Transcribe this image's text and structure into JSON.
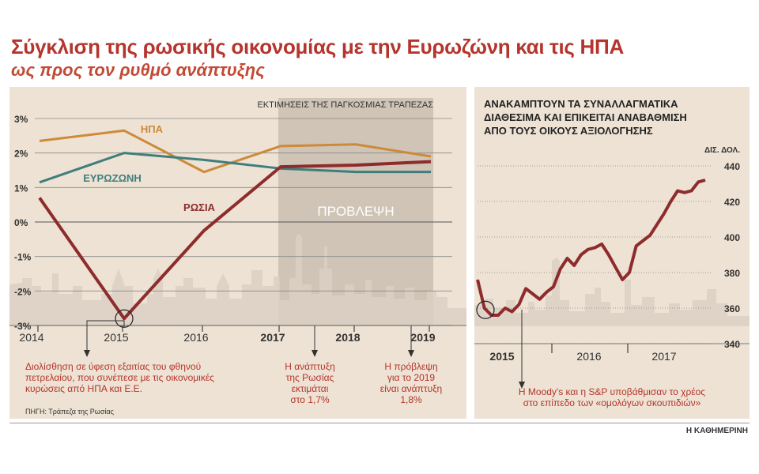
{
  "header": {
    "title": "Σύγκλιση της ρωσικής οικονομίας με την Ευρωζώνη και τις ΗΠΑ",
    "subtitle": "ως προς τον ρυθμό ανάπτυξης"
  },
  "colors": {
    "panel_bg": "#ede2d3",
    "russia": "#8e2c2d",
    "usa": "#cd8a3a",
    "eurozone": "#3f7e7c",
    "accent_red": "#b5352d",
    "forecast_band": "#cfc4b6",
    "skyline": "#dad0c3"
  },
  "chart_data": [
    {
      "type": "line",
      "x_labels": [
        "2014",
        "2015",
        "2016",
        "2017",
        "2018",
        "2019"
      ],
      "x_labels_bold": [
        "2017",
        "2018",
        "2019"
      ],
      "ylim": [
        -3,
        3
      ],
      "y_ticks": [
        "3%",
        "2%",
        "1%",
        "0%",
        "-1%",
        "-2%",
        "-3%"
      ],
      "y_tick_values": [
        3,
        2,
        1,
        0,
        -1,
        -2,
        -3
      ],
      "series": [
        {
          "name": "ΗΠΑ",
          "color": "#cd8a3a",
          "points": [
            [
              2014,
              2.35
            ],
            [
              2015,
              2.65
            ],
            [
              2016,
              1.45
            ],
            [
              2017,
              2.2
            ],
            [
              2018,
              2.25
            ],
            [
              2019,
              1.9
            ]
          ]
        },
        {
          "name": "ΕΥΡΩΖΩΝΗ",
          "color": "#3f7e7c",
          "points": [
            [
              2014,
              1.15
            ],
            [
              2015,
              2.0
            ],
            [
              2016,
              1.8
            ],
            [
              2017,
              1.55
            ],
            [
              2018,
              1.45
            ],
            [
              2019,
              1.45
            ]
          ]
        },
        {
          "name": "ΡΩΣΙΑ",
          "color": "#8e2c2d",
          "points": [
            [
              2014,
              0.7
            ],
            [
              2015,
              -2.8
            ],
            [
              2016,
              -0.25
            ],
            [
              2017,
              1.6
            ],
            [
              2018,
              1.65
            ],
            [
              2019,
              1.75
            ]
          ]
        }
      ],
      "forecast_label": "ΠΡΟΒΛΕΨΗ",
      "forecast_range": [
        2017,
        2019
      ],
      "header_note": "ΕΚΤΙΜΗΣΕΙΣ ΤΗΣ ΠΑΓΚΟΣΜΙΑΣ ΤΡΑΠΕΖΑΣ",
      "annotations": [
        {
          "lines": [
            "Διολίσθηση σε ύφεση εξαιτίας του φθηνού",
            "πετρελαίου, που συνέπεσε με τις οικονομικές",
            "κυρώσεις από ΗΠΑ και Ε.Ε."
          ]
        },
        {
          "lines": [
            "Η ανάπτυξη",
            "της Ρωσίας",
            "εκτιμάται",
            "στο 1,7%"
          ]
        },
        {
          "lines": [
            "Η πρόβλεψη",
            "για το 2019",
            "είναι ανάπτυξη",
            "1,8%"
          ]
        }
      ],
      "source": "ΠΗΓΗ: Τράπεζα της Ρωσίας"
    },
    {
      "type": "line",
      "title_lines": [
        "ΑΝΑΚΑΜΠΤΟΥΝ ΤΑ ΣΥΝΑΛΛΑΓΜΑΤΙΚΑ",
        "ΔΙΑΘΕΣΙΜΑ ΚΑΙ ΕΠΙΚΕΙΤΑΙ ΑΝΑΒΑΘΜΙΣΗ",
        "ΑΠΟ ΤΟΥΣ ΟΙΚΟΥΣ ΑΞΙΟΛΟΓΗΣΗΣ"
      ],
      "unit": "ΔΙΣ. ΔΟΛ.",
      "ylim": [
        340,
        440
      ],
      "y_ticks": [
        "440",
        "420",
        "400",
        "380",
        "360",
        "340"
      ],
      "y_tick_values": [
        440,
        420,
        400,
        380,
        360,
        340
      ],
      "x_labels": [
        "2015",
        "2016",
        "2017"
      ],
      "series": [
        {
          "name": "",
          "color": "#8e2c2d",
          "values": [
            376,
            360,
            356,
            356,
            360,
            358,
            362,
            371,
            368,
            365,
            369,
            372,
            382,
            388,
            384,
            390,
            393,
            394,
            396,
            390,
            383,
            376,
            380,
            395,
            398,
            401,
            407,
            413,
            420,
            426,
            425,
            426,
            431,
            432
          ]
        }
      ],
      "annotation_lines": [
        "Η Moody's και η S&P υποβάθμισαν το χρέος",
        "στο επίπεδο των «ομολόγων σκουπιδιών»"
      ]
    }
  ],
  "footer": {
    "credit": "Η ΚΑΘΗΜΕΡΙΝΗ"
  }
}
